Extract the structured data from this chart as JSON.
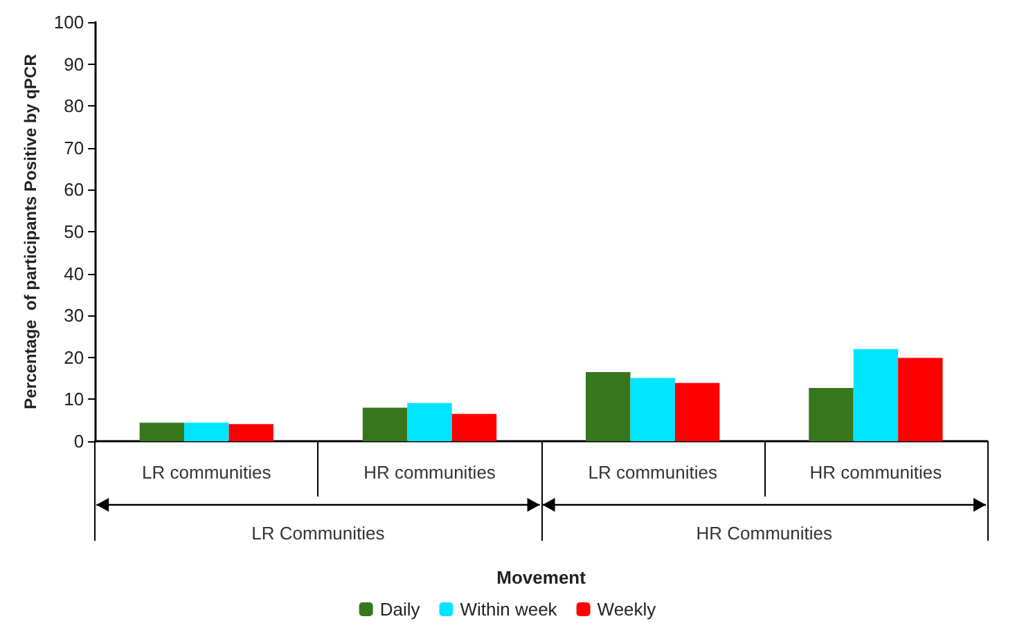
{
  "chart_data": {
    "type": "bar",
    "ylabel": "Percentage  of participants Positive by qPCR",
    "xlabel": "Movement",
    "categories": [
      "LR communities",
      "HR communities",
      "LR communities",
      "HR communities"
    ],
    "series": [
      {
        "name": "Daily",
        "color": "#38761d",
        "values": [
          4.4,
          8.0,
          16.5,
          12.7
        ]
      },
      {
        "name": "Within week",
        "color": "#00e5ff",
        "values": [
          4.4,
          9.1,
          15.1,
          22.0
        ]
      },
      {
        "name": "Weekly",
        "color": "#ff0000",
        "values": [
          4.1,
          6.5,
          13.9,
          19.9
        ]
      }
    ],
    "annotations": [
      "LR Communities",
      "HR Communities"
    ],
    "ylim": [
      0,
      100
    ],
    "yticks": [
      0,
      10,
      20,
      30,
      40,
      50,
      60,
      70,
      80,
      90,
      100
    ],
    "grid": false,
    "legend": "bottom"
  }
}
